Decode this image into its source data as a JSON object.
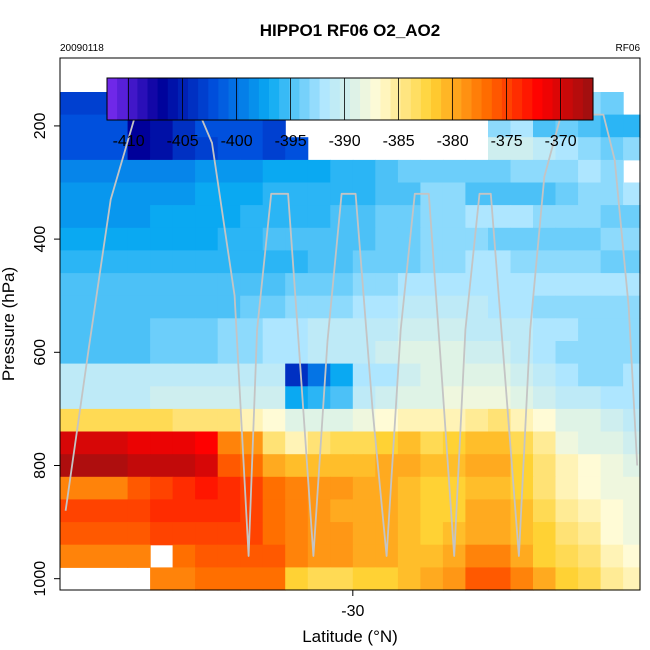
{
  "chart_data": {
    "type": "heatmap",
    "title": "HIPPO1 RF06 O2_AO2",
    "date_label": "20090118",
    "flight_label": "RF06",
    "xlabel": "Latitude (°N)",
    "ylabel": "Pressure (hPa)",
    "xlim": [
      -35.2,
      -24.9
    ],
    "ylim": [
      1020,
      80
    ],
    "y_reversed": true,
    "xticks": [
      -30
    ],
    "yticks": [
      200,
      400,
      600,
      800,
      1000
    ],
    "grid": false,
    "colorbar": {
      "placement": "top",
      "min": -412,
      "max": -367,
      "ticks": [
        -410,
        -405,
        -400,
        -395,
        -390,
        -385,
        -380,
        -375,
        -370
      ],
      "palette": [
        "#7b2cf0",
        "#00009a",
        "#0050dd",
        "#0aa9f2",
        "#aee6ff",
        "#fffbd6",
        "#ffd234",
        "#ff6f00",
        "#ff0000",
        "#9a1111"
      ]
    },
    "pressure_levels": [
      140,
      180,
      220,
      260,
      300,
      340,
      380,
      420,
      460,
      500,
      540,
      580,
      620,
      660,
      700,
      740,
      780,
      820,
      860,
      900,
      940,
      980,
      1020
    ],
    "latitude_columns": [
      -35.2,
      -34.0,
      -33.6,
      -33.2,
      -32.8,
      -32.4,
      -32.0,
      -31.6,
      -31.2,
      -30.8,
      -30.4,
      -30.0,
      -29.6,
      -29.2,
      -28.8,
      -28.4,
      -28.0,
      -27.6,
      -27.2,
      -26.8,
      -26.4,
      -26.0,
      -25.6,
      -25.2,
      -24.9
    ],
    "value_grid": [
      [
        -403,
        -403,
        -404,
        -403,
        -401,
        -401,
        -401,
        null,
        null,
        null,
        null,
        null,
        null,
        null,
        null,
        null,
        null,
        null,
        null,
        -395,
        -394,
        -393,
        -394,
        null
      ],
      [
        -402,
        -407,
        -406,
        -404,
        -402,
        -402,
        -402,
        -403,
        null,
        null,
        null,
        null,
        null,
        null,
        null,
        null,
        null,
        -393,
        -392,
        -395,
        -394,
        -395,
        -396,
        -396
      ],
      [
        -402,
        -407,
        -406,
        -404,
        -403,
        -402,
        -402,
        -403,
        -402,
        null,
        null,
        null,
        null,
        null,
        null,
        null,
        null,
        -390,
        -390,
        -391,
        -392,
        -393,
        -394,
        -393
      ],
      [
        -399,
        -399,
        -399,
        -399,
        -398,
        -398,
        -398,
        -397,
        -397,
        -397,
        -396,
        -396,
        -395,
        -394,
        -394,
        -394,
        -394,
        -394,
        -393,
        -393,
        -393,
        -392,
        -393,
        null
      ],
      [
        -398,
        -398,
        -398,
        -398,
        -397,
        -397,
        -397,
        -396,
        -396,
        -396,
        -396,
        -396,
        -395,
        -395,
        -393,
        -393,
        -395,
        -395,
        -395,
        -395,
        -394,
        -393,
        -393,
        -392
      ],
      [
        -398,
        -398,
        -397,
        -397,
        -397,
        -397,
        -396,
        -396,
        -396,
        -396,
        -395,
        -395,
        -394,
        -394,
        -393,
        -393,
        -392,
        -392,
        -392,
        -393,
        -393,
        -393,
        -394,
        -394
      ],
      [
        -397,
        -397,
        -397,
        -397,
        -397,
        -396,
        -396,
        -395,
        -395,
        -395,
        -395,
        -395,
        -394,
        -394,
        -393,
        -393,
        -393,
        -394,
        -394,
        -394,
        -394,
        -394,
        -393,
        -393
      ],
      [
        -396,
        -396,
        -396,
        -396,
        -396,
        -396,
        -396,
        -396,
        -396,
        -395,
        -395,
        -394,
        -394,
        -394,
        -393,
        -393,
        -392,
        -392,
        -393,
        -393,
        -393,
        -393,
        -394,
        -394
      ],
      [
        -395,
        -395,
        -395,
        -395,
        -395,
        -395,
        -395,
        -395,
        -394,
        -394,
        -394,
        -393,
        -393,
        -392,
        -392,
        -392,
        -392,
        -392,
        -392,
        -392,
        -392,
        -392,
        -392,
        -392
      ],
      [
        -395,
        -395,
        -395,
        -395,
        -395,
        -395,
        -394,
        -394,
        -393,
        -393,
        -393,
        -392,
        -392,
        -391,
        -391,
        -391,
        -391,
        -392,
        -392,
        -393,
        -393,
        -393,
        -393,
        -393
      ],
      [
        -395,
        -395,
        -394,
        -394,
        -394,
        -393,
        -393,
        -392,
        -392,
        -391,
        -391,
        -391,
        -391,
        -390,
        -390,
        -390,
        -391,
        -391,
        -391,
        -392,
        -392,
        -393,
        -393,
        -393
      ],
      [
        -395,
        -395,
        -394,
        -394,
        -394,
        -393,
        -393,
        -392,
        -392,
        -391,
        -391,
        -391,
        -390,
        -389,
        -389,
        -389,
        -390,
        -390,
        -391,
        -392,
        -393,
        -393,
        -393,
        -393
      ],
      [
        -391,
        -391,
        -391,
        -391,
        -391,
        -391,
        -391,
        -391,
        -404,
        -400,
        -397,
        -392,
        -392,
        -390,
        -389,
        -389,
        -389,
        -389,
        -390,
        -391,
        -392,
        -393,
        -393,
        -392
      ],
      [
        -391,
        -391,
        -390,
        -390,
        -390,
        -390,
        -390,
        -390,
        -397,
        -396,
        -395,
        -391,
        -390,
        -389,
        -389,
        -388,
        -388,
        -388,
        -389,
        -390,
        -391,
        -391,
        -392,
        -392
      ],
      [
        -383,
        -383,
        -383,
        -384,
        -384,
        -384,
        -386,
        -387,
        -389,
        -389,
        -389,
        -388,
        -387,
        -386,
        -386,
        -386,
        -385,
        -384,
        -386,
        -387,
        -389,
        -389,
        -390,
        -391
      ],
      [
        -370,
        -371,
        -371,
        -371,
        -372,
        -378,
        -379,
        -384,
        -386,
        -384,
        -383,
        -383,
        -382,
        -381,
        -383,
        -382,
        -381,
        -381,
        -383,
        -385,
        -388,
        -389,
        -389,
        -390
      ],
      [
        -368,
        -369,
        -369,
        -369,
        -370,
        -376,
        -377,
        -380,
        -381,
        -381,
        -381,
        -381,
        -380,
        -380,
        -381,
        -381,
        -380,
        -380,
        -382,
        -384,
        -386,
        -387,
        -388,
        -389
      ],
      [
        -378,
        -376,
        -375,
        -374,
        -373,
        -374,
        -375,
        -377,
        -378,
        -379,
        -379,
        -380,
        -380,
        -381,
        -382,
        -382,
        -381,
        -381,
        -382,
        -384,
        -386,
        -387,
        -388,
        -388
      ],
      [
        -375,
        -375,
        -374,
        -374,
        -374,
        -374,
        -375,
        -377,
        -378,
        -379,
        -380,
        -380,
        -380,
        -381,
        -382,
        -382,
        -380,
        -380,
        -381,
        -383,
        -385,
        -386,
        -387,
        -388
      ],
      [
        -376,
        -376,
        -375,
        -375,
        -375,
        -375,
        -375,
        -377,
        -378,
        -379,
        -379,
        -380,
        -380,
        -381,
        -382,
        -381,
        -380,
        -380,
        -381,
        -382,
        -384,
        -385,
        -387,
        -388
      ],
      [
        -378,
        -378,
        null,
        -377,
        -376,
        -376,
        -376,
        -376,
        -378,
        -379,
        -379,
        -380,
        -380,
        -381,
        -381,
        -380,
        -378,
        -378,
        -380,
        -382,
        -383,
        -384,
        -386,
        -387
      ],
      [
        null,
        null,
        -378,
        -378,
        -377,
        -377,
        -377,
        -377,
        -382,
        -383,
        -383,
        -382,
        -382,
        -381,
        -380,
        -379,
        -376,
        -376,
        -378,
        -380,
        -382,
        -383,
        -385,
        -386
      ]
    ],
    "flight_track": [
      [
        -35.1,
        880
      ],
      [
        -34.7,
        600
      ],
      [
        -34.3,
        330
      ],
      [
        -33.8,
        160
      ],
      [
        -33.3,
        160
      ],
      [
        -32.8,
        160
      ],
      [
        -32.5,
        230
      ],
      [
        -32.1,
        500
      ],
      [
        -31.85,
        960
      ],
      [
        -31.7,
        560
      ],
      [
        -31.45,
        320
      ],
      [
        -31.15,
        320
      ],
      [
        -30.95,
        600
      ],
      [
        -30.7,
        960
      ],
      [
        -30.45,
        580
      ],
      [
        -30.2,
        320
      ],
      [
        -29.95,
        320
      ],
      [
        -29.65,
        700
      ],
      [
        -29.4,
        960
      ],
      [
        -29.15,
        560
      ],
      [
        -28.9,
        320
      ],
      [
        -28.65,
        320
      ],
      [
        -28.45,
        600
      ],
      [
        -28.2,
        960
      ],
      [
        -28.0,
        560
      ],
      [
        -27.75,
        320
      ],
      [
        -27.55,
        320
      ],
      [
        -27.3,
        640
      ],
      [
        -27.05,
        960
      ],
      [
        -26.85,
        560
      ],
      [
        -26.6,
        290
      ],
      [
        -26.3,
        180
      ],
      [
        -25.9,
        180
      ],
      [
        -25.55,
        180
      ],
      [
        -25.35,
        260
      ],
      [
        -25.1,
        520
      ],
      [
        -24.95,
        800
      ]
    ]
  }
}
